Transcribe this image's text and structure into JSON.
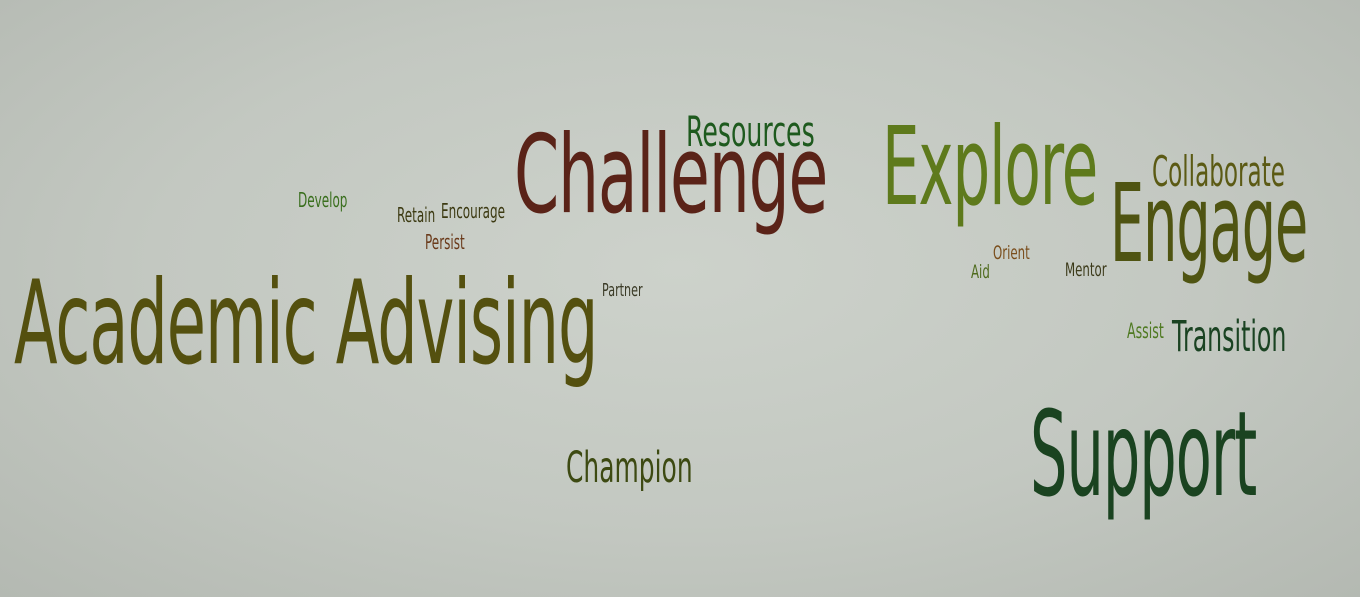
{
  "words": [
    {
      "key": "academic_advising",
      "text": "Academic Advising",
      "color": "#54500f"
    },
    {
      "key": "challenge",
      "text": "Challenge",
      "color": "#5a2318"
    },
    {
      "key": "explore",
      "text": "Explore",
      "color": "#5e7a1c"
    },
    {
      "key": "engage",
      "text": "Engage",
      "color": "#4f5412"
    },
    {
      "key": "support",
      "text": "Support",
      "color": "#1a4320"
    },
    {
      "key": "resources",
      "text": "Resources",
      "color": "#1e5a1e"
    },
    {
      "key": "collaborate",
      "text": "Collaborate",
      "color": "#5b5a14"
    },
    {
      "key": "transition",
      "text": "Transition",
      "color": "#1a4322"
    },
    {
      "key": "champion",
      "text": "Champion",
      "color": "#3d4a12"
    },
    {
      "key": "develop",
      "text": "Develop",
      "color": "#3a6f1e"
    },
    {
      "key": "retain",
      "text": "Retain",
      "color": "#3c3a12"
    },
    {
      "key": "encourage",
      "text": "Encourage",
      "color": "#3c3a12"
    },
    {
      "key": "persist",
      "text": "Persist",
      "color": "#6a3a1a"
    },
    {
      "key": "partner",
      "text": "Partner",
      "color": "#3a3a26"
    },
    {
      "key": "aid",
      "text": "Aid",
      "color": "#4e6a1c"
    },
    {
      "key": "orient",
      "text": "Orient",
      "color": "#7a4e1c"
    },
    {
      "key": "mentor",
      "text": "Mentor",
      "color": "#3c3a1a"
    },
    {
      "key": "assist",
      "text": "Assist",
      "color": "#4f7a22"
    }
  ]
}
